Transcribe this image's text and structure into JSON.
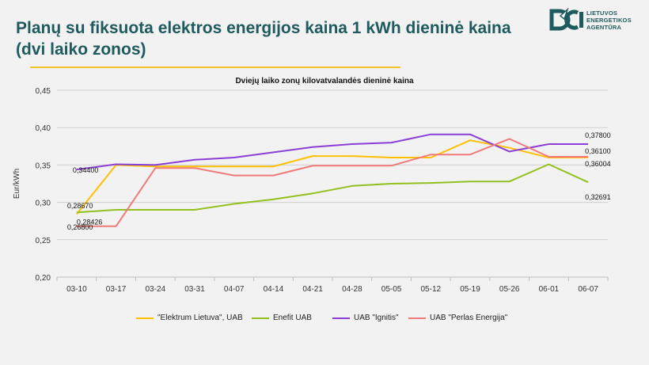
{
  "header": {
    "title_line1": "Planų su fiksuota elektros energijos kaina 1 kWh dieninė kaina",
    "title_line2": "(dvi laiko zonos)"
  },
  "logo": {
    "line1": "LIETUVOS",
    "line2": "ENERGETIKOS",
    "line3": "AGENTŪRA",
    "color": "#1f5b5e"
  },
  "chart_data": {
    "type": "line",
    "title": "Dviejų laiko zonų kilovatvalandės dieninė kaina",
    "xlabel": "",
    "ylabel": "Eur/kWh",
    "ylim": [
      0.2,
      0.45
    ],
    "yticks": [
      "0,20",
      "0,25",
      "0,30",
      "0,35",
      "0,40",
      "0,45"
    ],
    "categories": [
      "03-10",
      "03-17",
      "03-24",
      "03-31",
      "04-07",
      "04-14",
      "04-21",
      "04-28",
      "05-05",
      "05-12",
      "05-19",
      "05-26",
      "06-01",
      "06-07"
    ],
    "grid": true,
    "legend_position": "bottom",
    "series": [
      {
        "name": "\"Elektrum Lietuva\", UAB",
        "color": "#ffc000",
        "values": [
          0.2843,
          0.35,
          0.348,
          0.348,
          0.348,
          0.348,
          0.362,
          0.362,
          0.36,
          0.36,
          0.383,
          0.373,
          0.36,
          0.36004
        ],
        "first_label": "0,28426",
        "last_label": "0,36004"
      },
      {
        "name": "Enefit UAB",
        "color": "#92c01f",
        "values": [
          0.2867,
          0.29,
          0.29,
          0.29,
          0.298,
          0.304,
          0.312,
          0.322,
          0.325,
          0.326,
          0.328,
          0.328,
          0.351,
          0.32691
        ],
        "first_label": "0,28670",
        "last_label": "0,32691"
      },
      {
        "name": "UAB \"Ignitis\"",
        "color": "#8b3fd6",
        "values": [
          0.344,
          0.351,
          0.35,
          0.357,
          0.36,
          0.367,
          0.374,
          0.378,
          0.38,
          0.391,
          0.391,
          0.368,
          0.378,
          0.378
        ],
        "first_label": "0,34400",
        "last_label": "0,37800"
      },
      {
        "name": "UAB \"Perlas Energija\"",
        "color": "#f07a7a",
        "values": [
          0.268,
          0.268,
          0.346,
          0.346,
          0.336,
          0.336,
          0.349,
          0.349,
          0.349,
          0.364,
          0.364,
          0.385,
          0.361,
          0.361
        ],
        "first_label": "0,26800",
        "last_label": "0,36100"
      }
    ]
  }
}
